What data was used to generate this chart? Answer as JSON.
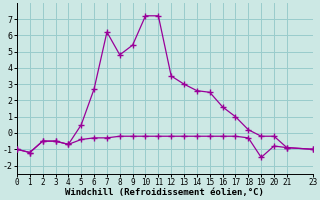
{
  "xlabel": "Windchill (Refroidissement éolien,°C)",
  "bg_color": "#cce8e4",
  "line_color": "#990099",
  "grid_color": "#99cccc",
  "xlim": [
    0,
    23
  ],
  "ylim": [
    -2.5,
    8.0
  ],
  "yticks": [
    -2,
    -1,
    0,
    1,
    2,
    3,
    4,
    5,
    6,
    7
  ],
  "xticks": [
    0,
    1,
    2,
    3,
    4,
    5,
    6,
    7,
    8,
    9,
    10,
    11,
    12,
    13,
    14,
    15,
    16,
    17,
    18,
    19,
    20,
    21,
    23
  ],
  "series1_x": [
    0,
    1,
    2,
    3,
    4,
    5,
    6,
    7,
    8,
    9,
    10,
    11,
    12,
    13,
    14,
    15,
    16,
    17,
    18,
    19,
    20,
    21,
    23
  ],
  "series1_y": [
    -1.0,
    -1.2,
    -0.5,
    -0.5,
    -0.7,
    -0.4,
    -0.3,
    -0.3,
    -0.2,
    -0.2,
    -0.2,
    -0.2,
    -0.2,
    -0.2,
    -0.2,
    -0.2,
    -0.2,
    -0.2,
    -0.3,
    -1.5,
    -0.8,
    -0.9,
    -1.0
  ],
  "series2_x": [
    0,
    1,
    2,
    3,
    4,
    5,
    6,
    7,
    8,
    9,
    10,
    11,
    12,
    13,
    14,
    15,
    16,
    17,
    18,
    19,
    20,
    21,
    23
  ],
  "series2_y": [
    -1.0,
    -1.2,
    -0.5,
    -0.5,
    -0.7,
    0.5,
    2.7,
    6.2,
    4.8,
    5.4,
    7.2,
    7.2,
    3.5,
    3.0,
    2.6,
    2.5,
    1.6,
    1.0,
    0.2,
    -0.2,
    -0.2,
    -0.9,
    -1.0
  ]
}
